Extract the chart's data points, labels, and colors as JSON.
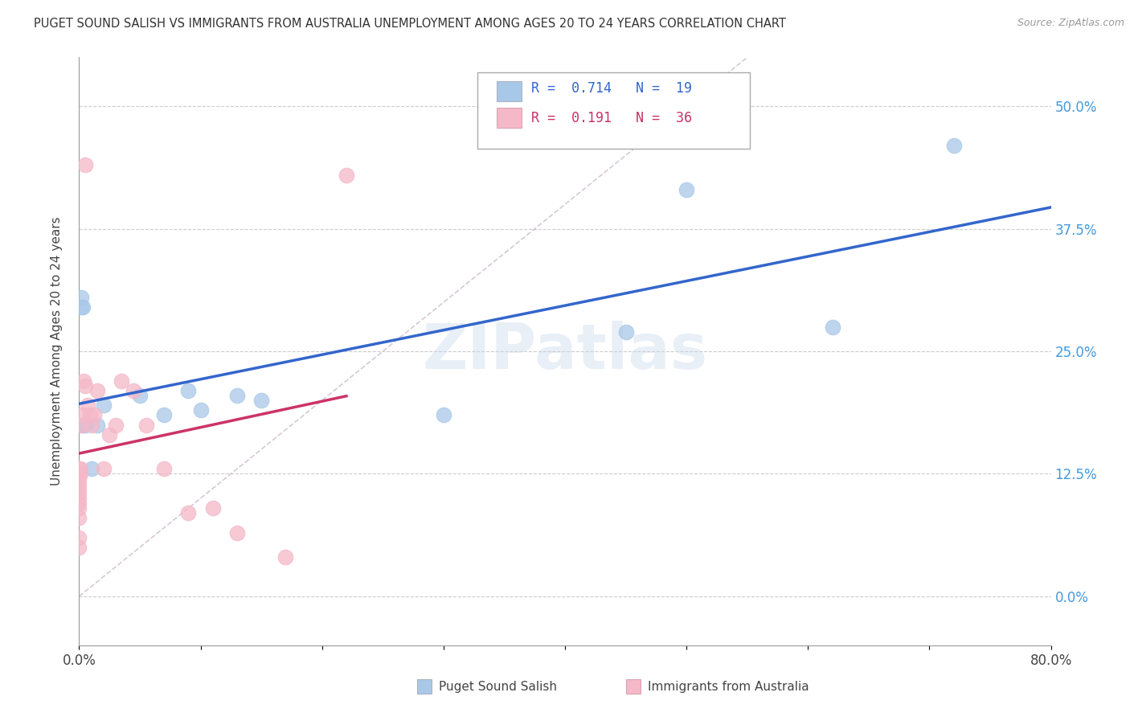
{
  "title": "PUGET SOUND SALISH VS IMMIGRANTS FROM AUSTRALIA UNEMPLOYMENT AMONG AGES 20 TO 24 YEARS CORRELATION CHART",
  "source": "Source: ZipAtlas.com",
  "ylabel": "Unemployment Among Ages 20 to 24 years",
  "xlim": [
    0.0,
    0.8
  ],
  "ylim": [
    -0.05,
    0.55
  ],
  "blue_scatter_x": [
    0.002,
    0.002,
    0.003,
    0.003,
    0.005,
    0.01,
    0.015,
    0.02,
    0.05,
    0.07,
    0.09,
    0.1,
    0.13,
    0.15,
    0.3,
    0.45,
    0.5,
    0.62,
    0.72
  ],
  "blue_scatter_y": [
    0.295,
    0.305,
    0.295,
    0.175,
    0.175,
    0.13,
    0.175,
    0.195,
    0.205,
    0.185,
    0.21,
    0.19,
    0.205,
    0.2,
    0.185,
    0.27,
    0.415,
    0.275,
    0.46
  ],
  "pink_scatter_x": [
    0.0,
    0.0,
    0.0,
    0.0,
    0.0,
    0.0,
    0.0,
    0.0,
    0.0,
    0.0,
    0.0,
    0.0,
    0.001,
    0.001,
    0.002,
    0.003,
    0.004,
    0.005,
    0.007,
    0.009,
    0.01,
    0.012,
    0.015,
    0.02,
    0.025,
    0.03,
    0.035,
    0.045,
    0.055,
    0.07,
    0.09,
    0.11,
    0.13,
    0.17,
    0.22,
    0.005
  ],
  "pink_scatter_y": [
    0.08,
    0.09,
    0.095,
    0.1,
    0.105,
    0.11,
    0.115,
    0.12,
    0.125,
    0.13,
    0.05,
    0.06,
    0.125,
    0.13,
    0.175,
    0.185,
    0.22,
    0.215,
    0.195,
    0.185,
    0.175,
    0.185,
    0.21,
    0.13,
    0.165,
    0.175,
    0.22,
    0.21,
    0.175,
    0.13,
    0.085,
    0.09,
    0.065,
    0.04,
    0.43,
    0.44
  ],
  "blue_color": "#A8C8E8",
  "pink_color": "#F4B8C8",
  "blue_line_color": "#3366CC",
  "pink_line_color": "#CC3366",
  "blue_R": 0.714,
  "blue_N": 19,
  "pink_R": 0.191,
  "pink_N": 36,
  "watermark": "ZIPatlas",
  "ref_line_x": [
    0.0,
    0.55
  ],
  "ref_line_y": [
    0.0,
    0.55
  ]
}
